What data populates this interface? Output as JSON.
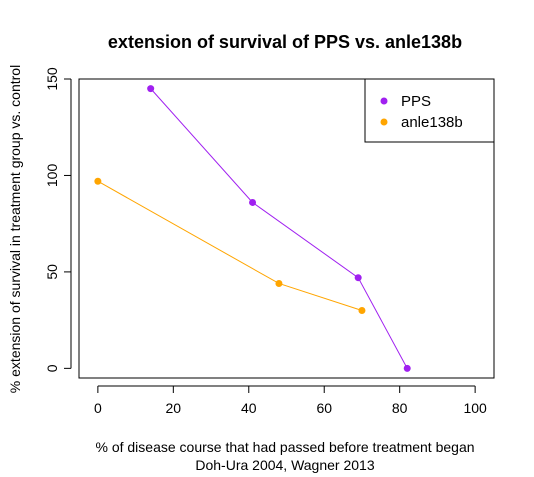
{
  "chart_data": {
    "type": "line",
    "title": "extension of survival of PPS vs. anle138b",
    "xlabel": "% of disease course that had passed before treatment began",
    "source": "Doh-Ura 2004, Wagner 2013",
    "ylabel": "% extension of survival in treatment group vs. control",
    "xlim": [
      -5,
      105
    ],
    "ylim": [
      -5,
      150
    ],
    "x_ticks": [
      0,
      20,
      40,
      60,
      80,
      100
    ],
    "y_ticks": [
      0,
      50,
      100,
      150
    ],
    "grid": false,
    "legend_position": "top-right",
    "series": [
      {
        "name": "PPS",
        "color": "#A020F0",
        "x": [
          14,
          41,
          69,
          82
        ],
        "y": [
          145,
          86,
          47,
          0
        ]
      },
      {
        "name": "anle138b",
        "color": "#FFA500",
        "x": [
          0,
          48,
          70
        ],
        "y": [
          97,
          44,
          30
        ]
      }
    ]
  }
}
